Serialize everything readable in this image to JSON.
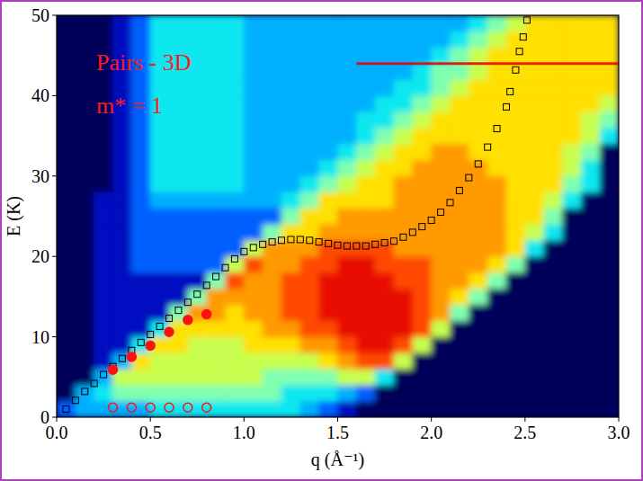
{
  "chart_data": {
    "type": "heatmap",
    "annotations": [
      "Pairs - 3D",
      "m* = 1"
    ],
    "xlabel": "q   (Å⁻¹)",
    "ylabel": "E  (K)",
    "xlim": [
      0,
      3
    ],
    "ylim": [
      0,
      50
    ],
    "xticks": [
      {
        "value": 0,
        "label": "0.0"
      },
      0.5,
      {
        "value": 1,
        "label": "1.0"
      },
      1.5,
      {
        "value": 2,
        "label": "2.0"
      },
      2.5,
      {
        "value": 3,
        "label": "3.0"
      }
    ],
    "yticks": [
      0,
      10,
      20,
      30,
      40,
      50
    ],
    "zlim": [
      0,
      10
    ],
    "q_bins": [
      0,
      0.1,
      0.2,
      0.3,
      0.4,
      0.5,
      0.6,
      0.7,
      0.8,
      0.9,
      1,
      1.1,
      1.2,
      1.3,
      1.4,
      1.5,
      1.6,
      1.7,
      1.8,
      1.9,
      2,
      2.1,
      2.2,
      2.3,
      2.4,
      2.5,
      2.6,
      2.7,
      2.8,
      2.9,
      3
    ],
    "E_bins": [
      0,
      2,
      4,
      6,
      8,
      10,
      12,
      14,
      16,
      18,
      20,
      22,
      24,
      26,
      28,
      30,
      32,
      34,
      36,
      38,
      40,
      42,
      44,
      46,
      48,
      50
    ],
    "cells": [
      [
        2,
        3,
        3,
        3,
        3,
        4,
        4,
        4,
        4,
        4,
        4,
        4,
        4,
        3,
        2,
        1,
        0,
        0,
        0,
        0,
        0,
        0,
        0,
        0,
        0,
        0,
        0,
        0,
        0,
        0
      ],
      [
        0,
        3,
        4,
        5,
        5,
        5,
        5,
        5,
        5,
        5,
        5,
        5,
        4,
        4,
        4,
        3,
        2,
        0,
        0,
        0,
        0,
        0,
        0,
        0,
        0,
        0,
        0,
        0,
        0,
        0
      ],
      [
        0,
        0,
        3,
        6,
        6,
        6,
        6,
        6,
        6,
        6,
        6,
        5,
        5,
        5,
        5,
        6,
        6,
        4,
        0,
        0,
        0,
        0,
        0,
        0,
        0,
        0,
        0,
        0,
        0,
        0
      ],
      [
        0,
        0,
        1,
        3,
        7,
        6,
        6,
        6,
        6,
        6,
        6,
        6,
        6,
        6,
        7,
        8,
        9,
        9,
        6,
        0,
        0,
        0,
        0,
        0,
        0,
        0,
        0,
        0,
        0,
        0
      ],
      [
        0,
        0,
        1,
        1,
        4,
        7,
        7,
        6,
        6,
        6,
        7,
        7,
        7,
        8,
        8,
        9,
        10,
        10,
        9,
        6,
        0,
        0,
        0,
        0,
        0,
        0,
        0,
        0,
        0,
        0
      ],
      [
        0,
        0,
        1,
        1,
        1,
        4,
        7,
        7,
        7,
        7,
        7,
        8,
        8,
        9,
        9,
        10,
        10,
        10,
        10,
        9,
        6,
        0,
        0,
        0,
        0,
        0,
        0,
        0,
        0,
        0
      ],
      [
        0,
        0,
        1,
        1,
        1,
        1,
        5,
        8,
        8,
        7,
        8,
        8,
        9,
        9,
        10,
        10,
        10,
        10,
        10,
        9,
        8,
        5,
        0,
        0,
        0,
        0,
        0,
        0,
        0,
        0
      ],
      [
        0,
        0,
        1,
        1,
        1,
        1,
        1,
        5,
        8,
        8,
        8,
        8,
        9,
        9,
        10,
        10,
        10,
        10,
        10,
        9,
        8,
        7,
        5,
        0,
        0,
        0,
        0,
        0,
        0,
        0
      ],
      [
        0,
        0,
        1,
        1,
        1,
        1,
        1,
        1,
        5,
        9,
        8,
        8,
        9,
        9,
        10,
        10,
        10,
        10,
        9,
        9,
        8,
        8,
        7,
        5,
        0,
        0,
        0,
        0,
        0,
        0
      ],
      [
        0,
        0,
        1,
        1,
        2,
        2,
        2,
        2,
        2,
        6,
        9,
        8,
        8,
        9,
        9,
        10,
        10,
        9,
        9,
        9,
        8,
        8,
        8,
        7,
        5,
        0,
        0,
        0,
        0,
        0
      ],
      [
        0,
        0,
        1,
        1,
        2,
        2,
        2,
        2,
        2,
        2,
        6,
        8,
        8,
        8,
        9,
        9,
        9,
        9,
        8,
        8,
        8,
        8,
        8,
        8,
        7,
        4,
        0,
        0,
        0,
        0
      ],
      [
        0,
        0,
        1,
        1,
        2,
        2,
        2,
        2,
        2,
        2,
        2,
        5,
        7,
        7,
        8,
        8,
        8,
        8,
        8,
        8,
        8,
        8,
        8,
        8,
        7,
        6,
        4,
        0,
        0,
        0
      ],
      [
        0,
        0,
        1,
        1,
        2,
        2,
        2,
        2,
        2,
        2,
        2,
        2,
        5,
        7,
        7,
        8,
        8,
        8,
        8,
        8,
        8,
        8,
        8,
        8,
        7,
        7,
        5,
        0,
        0,
        0
      ],
      [
        0,
        0,
        1,
        1,
        2,
        3,
        3,
        3,
        3,
        3,
        3,
        3,
        4,
        5,
        7,
        7,
        7,
        7,
        8,
        8,
        8,
        8,
        8,
        8,
        7,
        7,
        6,
        4,
        0,
        0
      ],
      [
        0,
        0,
        0,
        1,
        2,
        4,
        4,
        4,
        4,
        4,
        3,
        3,
        3,
        4,
        5,
        6,
        7,
        7,
        8,
        8,
        8,
        8,
        8,
        8,
        7,
        7,
        7,
        5,
        4,
        0
      ],
      [
        0,
        0,
        0,
        1,
        2,
        4,
        4,
        4,
        4,
        4,
        3,
        3,
        3,
        3,
        4,
        5,
        6,
        7,
        7,
        8,
        8,
        8,
        8,
        7,
        7,
        7,
        7,
        6,
        4,
        0
      ],
      [
        0,
        0,
        0,
        1,
        2,
        4,
        4,
        4,
        4,
        4,
        3,
        3,
        3,
        3,
        3,
        4,
        5,
        6,
        7,
        7,
        8,
        8,
        7,
        7,
        7,
        7,
        7,
        6,
        5,
        0
      ],
      [
        0,
        0,
        0,
        1,
        2,
        4,
        4,
        4,
        4,
        4,
        3,
        3,
        3,
        3,
        3,
        3,
        4,
        5,
        6,
        7,
        7,
        7,
        7,
        7,
        7,
        7,
        7,
        7,
        6,
        4
      ],
      [
        0,
        0,
        0,
        1,
        2,
        4,
        4,
        4,
        4,
        4,
        3,
        3,
        3,
        3,
        3,
        3,
        4,
        4,
        5,
        6,
        7,
        7,
        7,
        7,
        7,
        7,
        7,
        7,
        6,
        5
      ],
      [
        0,
        0,
        0,
        1,
        2,
        4,
        4,
        4,
        4,
        4,
        3,
        3,
        3,
        3,
        3,
        3,
        3,
        4,
        4,
        5,
        6,
        7,
        7,
        7,
        7,
        7,
        7,
        7,
        7,
        6
      ],
      [
        0,
        0,
        0,
        1,
        2,
        4,
        4,
        4,
        4,
        4,
        3,
        3,
        3,
        3,
        3,
        3,
        3,
        3,
        4,
        4,
        5,
        6,
        7,
        7,
        7,
        7,
        7,
        7,
        7,
        7
      ],
      [
        0,
        0,
        0,
        1,
        2,
        4,
        4,
        4,
        4,
        4,
        3,
        3,
        3,
        3,
        3,
        3,
        3,
        3,
        3,
        4,
        5,
        5,
        6,
        7,
        7,
        7,
        7,
        7,
        7,
        7
      ],
      [
        0,
        0,
        0,
        1,
        2,
        4,
        4,
        4,
        4,
        4,
        3,
        3,
        3,
        3,
        3,
        3,
        3,
        3,
        3,
        3,
        4,
        5,
        6,
        7,
        7,
        7,
        7,
        7,
        7,
        7
      ],
      [
        0,
        0,
        0,
        1,
        2,
        4,
        4,
        4,
        4,
        4,
        3,
        3,
        3,
        3,
        3,
        3,
        3,
        3,
        3,
        3,
        3,
        4,
        5,
        6,
        7,
        7,
        7,
        7,
        7,
        7
      ],
      [
        0,
        0,
        0,
        1,
        2,
        4,
        4,
        4,
        4,
        4,
        3,
        3,
        3,
        3,
        3,
        3,
        3,
        3,
        3,
        3,
        3,
        3,
        4,
        5,
        6,
        7,
        7,
        7,
        7,
        7
      ]
    ],
    "horizontal_line": {
      "E": 44,
      "q": [
        1.6,
        3
      ],
      "color": "#e80000"
    },
    "series": [
      {
        "type": "scatter",
        "marker": "open-square",
        "color": "#000000",
        "x": [
          0.05,
          0.1,
          0.15,
          0.2,
          0.25,
          0.3,
          0.35,
          0.4,
          0.45,
          0.5,
          0.55,
          0.6,
          0.65,
          0.7,
          0.75,
          0.8,
          0.85,
          0.9,
          0.95,
          1.0,
          1.05,
          1.1,
          1.15,
          1.2,
          1.25,
          1.3,
          1.35,
          1.4,
          1.45,
          1.5,
          1.55,
          1.6,
          1.65,
          1.7,
          1.75,
          1.8,
          1.85,
          1.9,
          1.95,
          2.0,
          2.05,
          2.1,
          2.15,
          2.2,
          2.25,
          2.3,
          2.35,
          2.4,
          2.42,
          2.45,
          2.47,
          2.49,
          2.51
        ],
        "values": [
          1.0,
          2.1,
          3.2,
          4.2,
          5.3,
          6.3,
          7.3,
          8.3,
          9.3,
          10.3,
          11.3,
          12.3,
          13.3,
          14.3,
          15.3,
          16.4,
          17.5,
          18.6,
          19.7,
          20.6,
          21.1,
          21.5,
          21.8,
          22.0,
          22.1,
          22.1,
          22.0,
          21.8,
          21.6,
          21.4,
          21.3,
          21.3,
          21.3,
          21.5,
          21.7,
          21.9,
          22.4,
          23.0,
          23.7,
          24.5,
          25.5,
          26.7,
          28.2,
          29.8,
          31.5,
          33.6,
          35.9,
          38.6,
          40.5,
          43.2,
          45.5,
          47.3,
          49.4
        ]
      },
      {
        "type": "scatter",
        "marker": "circle",
        "color": "#ff1010",
        "x": [
          0.3,
          0.4,
          0.5,
          0.6,
          0.7,
          0.8
        ],
        "values": [
          5.9,
          7.5,
          8.9,
          10.6,
          12.1,
          12.8
        ]
      },
      {
        "type": "scatter",
        "marker": "open-circle",
        "color": "#ff1010",
        "x": [
          0.3,
          0.4,
          0.5,
          0.6,
          0.7,
          0.8
        ],
        "values": [
          1.2,
          1.2,
          1.2,
          1.2,
          1.2,
          1.2
        ]
      }
    ]
  }
}
